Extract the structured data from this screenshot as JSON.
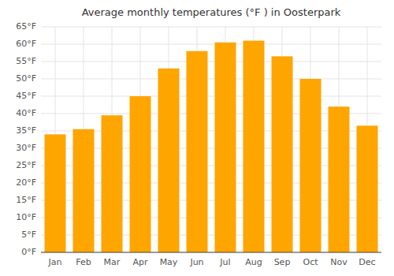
{
  "chart_data": {
    "type": "bar",
    "title": "Average monthly temperatures (°F ) in Oosterpark",
    "categories": [
      "Jan",
      "Feb",
      "Mar",
      "Apr",
      "May",
      "Jun",
      "Jul",
      "Aug",
      "Sep",
      "Oct",
      "Nov",
      "Dec"
    ],
    "values": [
      34,
      35.5,
      39.5,
      45,
      53,
      58,
      60.5,
      61,
      56.5,
      50,
      42,
      36.5
    ],
    "color": "#FFA500",
    "ylim": [
      0,
      65
    ],
    "yticks": [
      {
        "value": 0,
        "label": "0°F"
      },
      {
        "value": 5,
        "label": "5°F"
      },
      {
        "value": 10,
        "label": "10°F"
      },
      {
        "value": 15,
        "label": "15°F"
      },
      {
        "value": 20,
        "label": "20°F"
      },
      {
        "value": 25,
        "label": "25°F"
      },
      {
        "value": 30,
        "label": "30°F"
      },
      {
        "value": 35,
        "label": "35°F"
      },
      {
        "value": 40,
        "label": "40°F"
      },
      {
        "value": 45,
        "label": "45°F"
      },
      {
        "value": 50,
        "label": "50°F"
      },
      {
        "value": 55,
        "label": "55°F"
      },
      {
        "value": 60,
        "label": "60°F"
      },
      {
        "value": 65,
        "label": "65°F"
      }
    ],
    "grid": true
  }
}
